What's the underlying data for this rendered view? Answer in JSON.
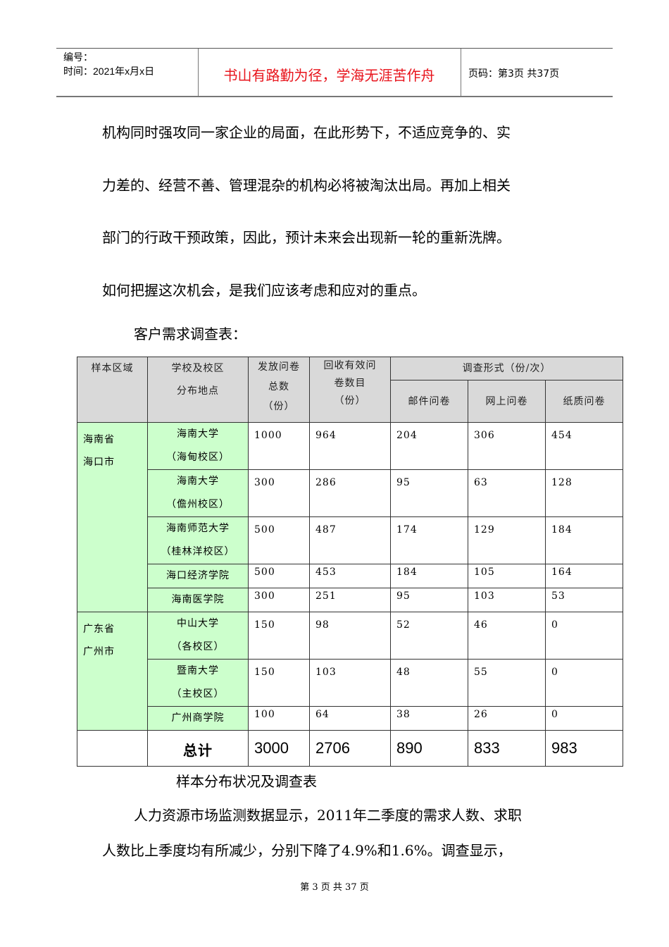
{
  "header": {
    "id_label": "编号：",
    "date_label": "时间：2021年x月x日",
    "motto": "书山有路勤为径，学海无涯苦作舟",
    "page_label": "页码：第3页 共37页"
  },
  "paragraphs": [
    "机构同时强攻同一家企业的局面，在此形势下，不适应竞争的、实",
    "力差的、经营不善、管理混杂的机构必将被淘汰出局。再加上相关",
    "部门的行政干预政策，因此，预计未来会出现新一轮的重新洗牌。",
    "如何把握这次机会，是我们应该考虑和应对的重点。"
  ],
  "table_title": "客户需求调查表：",
  "table": {
    "headers": {
      "region": "样本区域",
      "school": [
        "学校及校区",
        "分布地点"
      ],
      "issued": [
        "发放问卷",
        "总数",
        "（份）"
      ],
      "returned": [
        "回收有效问",
        "卷数目",
        "（份）"
      ],
      "form": "调查形式（份/次）",
      "mail": "邮件问卷",
      "online": "网上问卷",
      "paper": "纸质问卷"
    },
    "groups": [
      {
        "region": [
          "海南省",
          "海口市"
        ],
        "rows": [
          {
            "school": [
              "海南大学",
              "（海甸校区）"
            ],
            "values": [
              "1000",
              "964",
              "204",
              "306",
              "454"
            ]
          },
          {
            "school": [
              "海南大学",
              "（儋州校区）"
            ],
            "values": [
              "300",
              "286",
              "95",
              "63",
              "128"
            ]
          },
          {
            "school": [
              "海南师范大学",
              "（桂林洋校区）"
            ],
            "values": [
              "500",
              "487",
              "174",
              "129",
              "184"
            ]
          },
          {
            "school": [
              "海口经济学院"
            ],
            "values": [
              "500",
              "453",
              "184",
              "105",
              "164"
            ]
          },
          {
            "school": [
              "海南医学院"
            ],
            "values": [
              "300",
              "251",
              "95",
              "103",
              "53"
            ]
          }
        ]
      },
      {
        "region": [
          "广东省",
          "广州市"
        ],
        "rows": [
          {
            "school": [
              "中山大学",
              "（各校区）"
            ],
            "values": [
              "150",
              "98",
              "52",
              "46",
              "0"
            ]
          },
          {
            "school": [
              "暨南大学",
              "（主校区）"
            ],
            "values": [
              "150",
              "103",
              "48",
              "55",
              "0"
            ]
          },
          {
            "school": [
              "广州商学院"
            ],
            "values": [
              "100",
              "64",
              "38",
              "26",
              "0"
            ]
          }
        ]
      }
    ],
    "total": {
      "label": "总计",
      "values": [
        "3000",
        "2706",
        "890",
        "833",
        "983"
      ]
    }
  },
  "caption": "样本分布状况及调查表",
  "paragraphs2": [
    "人力资源市场监测数据显示，2011年二季度的需求人数、求职",
    "人数比上季度均有所减少，分别下降了4.9%和1.6%。调查显示，"
  ],
  "footer": "第 3 页 共 37 页",
  "colors": {
    "motto": "#e8141c",
    "header_bg": "#d9d9d9",
    "highlight_bg": "#ccffcc"
  }
}
